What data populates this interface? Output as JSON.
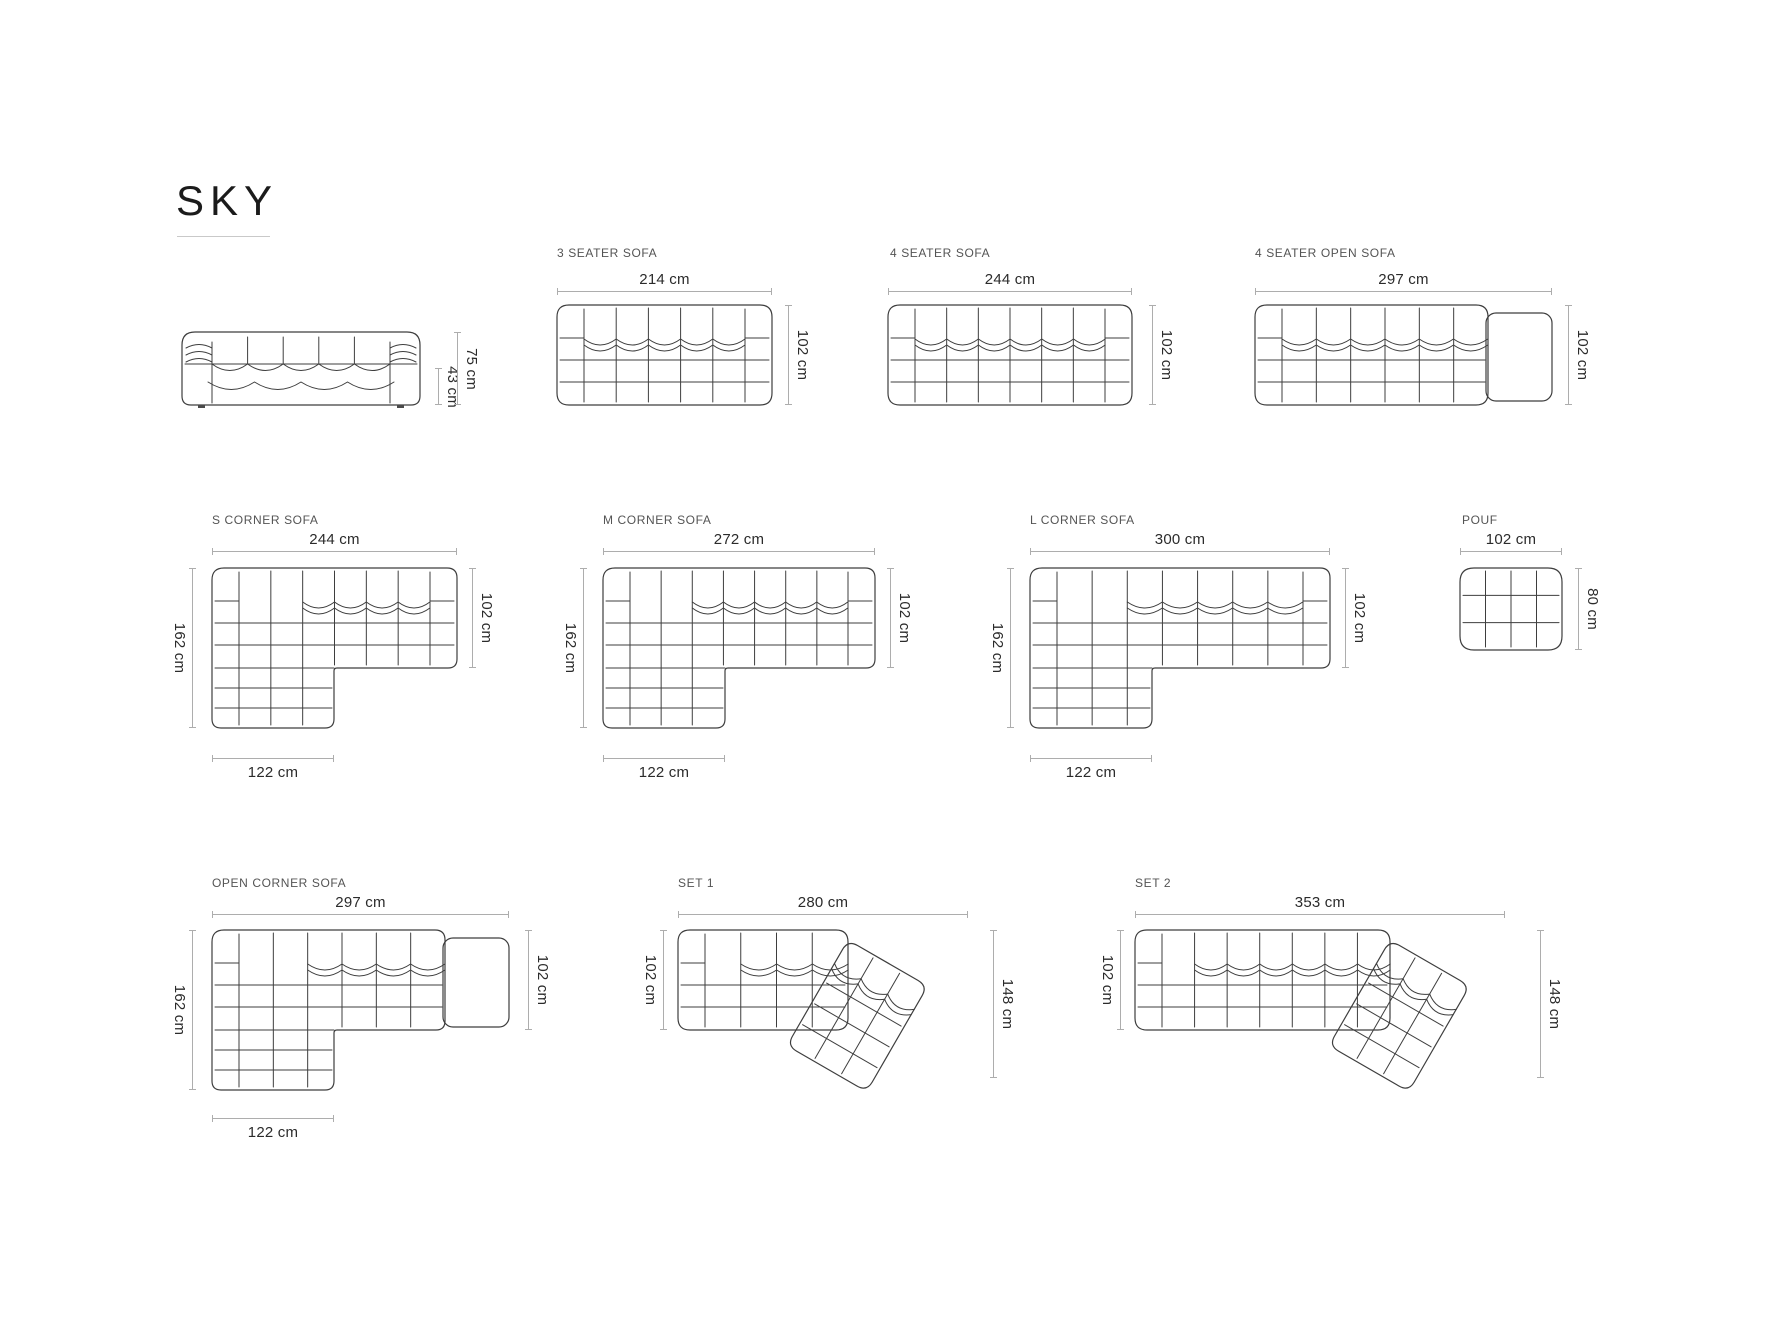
{
  "title": "SKY",
  "products": {
    "front_view": {
      "total_height": "75 cm",
      "seat_height": "43 cm"
    },
    "three_seater": {
      "label": "3 SEATER SOFA",
      "width": "214 cm",
      "depth": "102 cm"
    },
    "four_seater": {
      "label": "4 SEATER SOFA",
      "width": "244 cm",
      "depth": "102 cm"
    },
    "four_seater_open": {
      "label": "4 SEATER OPEN SOFA",
      "width": "297 cm",
      "depth": "102 cm"
    },
    "s_corner": {
      "label": "S CORNER SOFA",
      "width": "244 cm",
      "total_depth": "162 cm",
      "depth": "102 cm",
      "chaise_width": "122 cm"
    },
    "m_corner": {
      "label": "M CORNER SOFA",
      "width": "272 cm",
      "total_depth": "162 cm",
      "depth": "102 cm",
      "chaise_width": "122 cm"
    },
    "l_corner": {
      "label": "L CORNER SOFA",
      "width": "300 cm",
      "total_depth": "162 cm",
      "depth": "102 cm",
      "chaise_width": "122 cm"
    },
    "pouf": {
      "label": "POUF",
      "width": "102 cm",
      "depth": "80 cm"
    },
    "open_corner": {
      "label": "OPEN CORNER SOFA",
      "width": "297 cm",
      "total_depth": "162 cm",
      "depth": "102 cm",
      "chaise_width": "122 cm"
    },
    "set1": {
      "label": "SET 1",
      "width": "280 cm",
      "depth": "102 cm",
      "total_depth": "148 cm"
    },
    "set2": {
      "label": "SET 2",
      "width": "353 cm",
      "depth": "102 cm",
      "total_depth": "148 cm"
    }
  }
}
